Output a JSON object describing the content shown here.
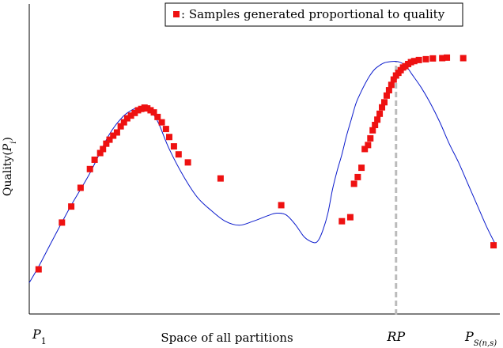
{
  "chart_data": {
    "type": "scatter",
    "title": "",
    "xlabel": "Space of all partitions",
    "ylabel": "Quality",
    "ylabel_arg": "P",
    "ylabel_sub": "i",
    "x_tick_labels": {
      "left": {
        "main": "P",
        "sub": "1"
      },
      "rp": {
        "main": "RP"
      },
      "right": {
        "main": "P",
        "sub": "S(n,s)"
      }
    },
    "legend": {
      "label": ": Samples generated proportional to quality",
      "placement": "top-right"
    },
    "xlim": [
      0,
      100
    ],
    "ylim": [
      0,
      100
    ],
    "rp_x": 78.6,
    "grid": false,
    "series": [
      {
        "type": "line",
        "color": "#0a1acc",
        "x": [
          0,
          2,
          5,
          9,
          13,
          17,
          20,
          22,
          23,
          24,
          25,
          26,
          27,
          28,
          30,
          33,
          36,
          39,
          42,
          45,
          48,
          51,
          53,
          55,
          57,
          59,
          61,
          62,
          63,
          64,
          65,
          66,
          67,
          68,
          69,
          70,
          71,
          72,
          73,
          74,
          75,
          76,
          77,
          78,
          78.6,
          79.2,
          80,
          81,
          82,
          84,
          86,
          88,
          90,
          92,
          94,
          96,
          98,
          100
        ],
        "y": [
          12,
          18,
          28,
          41,
          53,
          67,
          74,
          76.6,
          77.3,
          77.6,
          77.3,
          76.2,
          74,
          70.5,
          62,
          52,
          44,
          39,
          35,
          33.5,
          35,
          37,
          38,
          37.4,
          33.8,
          29,
          27,
          28,
          32,
          38,
          47,
          54,
          60,
          67,
          73,
          79,
          83,
          86.5,
          89.5,
          91.8,
          93.2,
          94.2,
          94.6,
          94.8,
          94.8,
          94.6,
          94,
          92.5,
          90,
          85,
          79,
          72,
          64,
          57,
          49,
          41,
          33,
          26
        ]
      },
      {
        "type": "scatter",
        "color": "#ee1111",
        "x": [
          2,
          7,
          9,
          11,
          13,
          14,
          15.2,
          15.8,
          16.5,
          17.2,
          18,
          18.8,
          19.6,
          20.3,
          21,
          21.8,
          22.6,
          23.3,
          24,
          24.7,
          25.3,
          26,
          26.7,
          27.5,
          28.4,
          29.3,
          30,
          31,
          32,
          34,
          41,
          54,
          67,
          68.8,
          69.6,
          70.4,
          71.2,
          71.9,
          72.6,
          73.1,
          73.6,
          74.1,
          74.6,
          75.1,
          75.6,
          76.1,
          76.6,
          77.1,
          77.6,
          78.1,
          78.6,
          79.1,
          79.6,
          80.1,
          80.6,
          81.2,
          81.8,
          82.5,
          83.5,
          85,
          86.5,
          88.5,
          89.5,
          93,
          99.5
        ],
        "y": [
          17,
          34.5,
          40.5,
          47.5,
          54.5,
          58,
          60.5,
          62,
          64,
          65.5,
          67,
          68.2,
          70.5,
          72,
          73.5,
          74.5,
          75.5,
          76.5,
          77,
          77.5,
          77.2,
          76.5,
          75.7,
          74,
          72,
          69.5,
          66.5,
          63,
          60,
          57,
          51,
          41,
          35,
          36.5,
          49,
          51.5,
          55,
          62,
          63.5,
          66,
          69,
          71,
          73,
          75.2,
          77.6,
          79.5,
          82,
          84,
          86,
          88,
          89.5,
          90.5,
          91.5,
          92.5,
          93,
          93.8,
          94.5,
          94.9,
          95.3,
          95.6,
          95.9,
          96,
          96.2,
          96,
          26
        ]
      }
    ]
  }
}
